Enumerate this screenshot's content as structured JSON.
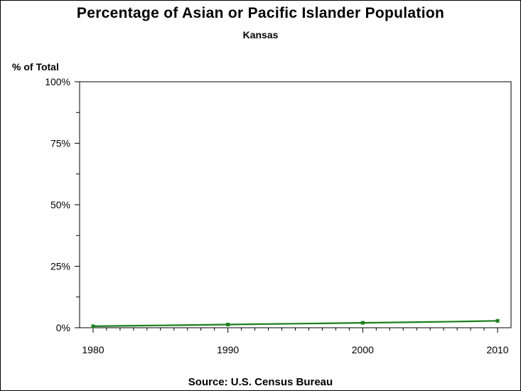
{
  "chart_data": {
    "type": "line",
    "title": "Percentage of Asian or Pacific Islander Population",
    "subtitle": "Kansas",
    "ylabel": "% of Total",
    "xlabel": "",
    "source": "Source: U.S. Census Bureau",
    "x_ticks": [
      "1980",
      "1990",
      "2000",
      "2010"
    ],
    "y_ticks": [
      "0%",
      "25%",
      "50%",
      "75%",
      "100%"
    ],
    "xlim": [
      1979,
      2011
    ],
    "ylim": [
      0,
      100
    ],
    "grid": false,
    "series": [
      {
        "color": "#1a7f1a",
        "points": [
          {
            "x": 1980,
            "y": 0.6
          },
          {
            "x": 1990,
            "y": 1.3
          },
          {
            "x": 2000,
            "y": 2.0
          },
          {
            "x": 2010,
            "y": 2.8
          }
        ],
        "line_x": [
          1980,
          1982,
          1985,
          1988,
          1990,
          1992,
          1995,
          1998,
          2000,
          2002,
          2005,
          2008,
          2010
        ],
        "line_y": [
          0.6,
          0.75,
          0.95,
          1.15,
          1.3,
          1.45,
          1.65,
          1.85,
          2.0,
          2.15,
          2.35,
          2.6,
          2.8
        ]
      }
    ]
  }
}
